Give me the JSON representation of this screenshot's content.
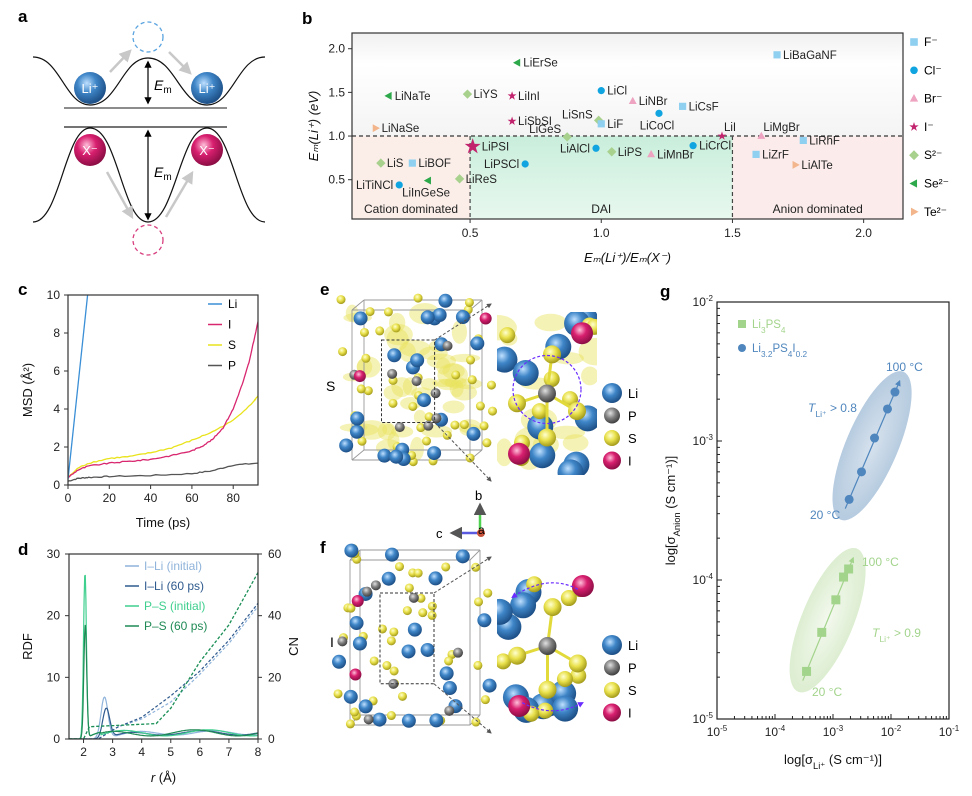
{
  "panel_labels": {
    "a": "a",
    "b": "b",
    "c": "c",
    "d": "d",
    "e": "e",
    "f": "f",
    "g": "g"
  },
  "colors": {
    "li": "#3f86c8",
    "anion": "#d81f6f",
    "p": "#7a7a7a",
    "s": "#e6e04a",
    "cation_region": "#fbeee9",
    "dai_region": "#d4f1e2",
    "anion_region": "#fbeceb"
  },
  "diagram_a": {
    "cation_label": "Li⁺",
    "anion_label": "X⁻",
    "barrier_symbol": "E",
    "barrier_subscript": "m"
  },
  "structures": {
    "e": {
      "side_label": "S"
    },
    "f": {
      "side_label": "I"
    },
    "legend": [
      {
        "label": "Li",
        "color": "#3f86c8"
      },
      {
        "label": "P",
        "color": "#808080"
      },
      {
        "label": "S",
        "color": "#e8e04a"
      },
      {
        "label": "I",
        "color": "#d81f6f"
      }
    ],
    "axes": {
      "b": "b",
      "c": "c",
      "a": "a"
    }
  },
  "chart_data": [
    {
      "id": "b",
      "type": "scatter",
      "xlabel": "Eₘ(Li⁺)/Eₘ(X⁻)",
      "ylabel": "Eₘ(Li⁺) (eV)",
      "xlim": [
        0.05,
        2.15
      ],
      "ylim": [
        0.05,
        2.18
      ],
      "xticks": [
        "0.5",
        "1.0",
        "1.5",
        "2.0"
      ],
      "yticks": [
        "0.5",
        "1.0",
        "1.5",
        "2.0"
      ],
      "threshold_y": 1.0,
      "regions": [
        {
          "label": "Cation dominated",
          "x": [
            0.05,
            0.5
          ]
        },
        {
          "label": "DAI",
          "x": [
            0.5,
            1.5
          ]
        },
        {
          "label": "Anion dominated",
          "x": [
            1.5,
            2.15
          ]
        }
      ],
      "legend_position": "right",
      "legend": [
        {
          "key": "F",
          "label": "F⁻",
          "marker": "square",
          "color": "#8fd0f0"
        },
        {
          "key": "Cl",
          "label": "Cl⁻",
          "marker": "circle",
          "color": "#10a4e0"
        },
        {
          "key": "Br",
          "label": "Br⁻",
          "marker": "triangle-up",
          "color": "#eea3c0"
        },
        {
          "key": "I",
          "label": "I⁻",
          "marker": "star",
          "color": "#c2236d"
        },
        {
          "key": "S",
          "label": "S²⁻",
          "marker": "diamond",
          "color": "#a9d18e"
        },
        {
          "key": "Se",
          "label": "Se²⁻",
          "marker": "triangle-left",
          "color": "#2da84b"
        },
        {
          "key": "Te",
          "label": "Te²⁻",
          "marker": "triangle-right",
          "color": "#f3b58b"
        }
      ],
      "points": [
        {
          "name": "LiErSe",
          "anion": "Se",
          "x": 0.68,
          "y": 1.84
        },
        {
          "name": "LiNaTe",
          "anion": "Se",
          "x": 0.19,
          "y": 1.46
        },
        {
          "name": "LiYS",
          "anion": "S",
          "x": 0.49,
          "y": 1.48
        },
        {
          "name": "LiInI",
          "anion": "I",
          "x": 0.66,
          "y": 1.46
        },
        {
          "name": "LiCl",
          "anion": "Cl",
          "x": 1.0,
          "y": 1.52
        },
        {
          "name": "LiNBr",
          "anion": "Br",
          "x": 1.12,
          "y": 1.4
        },
        {
          "name": "LiCsF",
          "anion": "F",
          "x": 1.31,
          "y": 1.34
        },
        {
          "name": "LiSbSI",
          "anion": "I",
          "x": 0.66,
          "y": 1.17
        },
        {
          "name": "LiSnS",
          "anion": "S",
          "x": 0.99,
          "y": 1.18
        },
        {
          "name": "LiF",
          "anion": "F",
          "x": 1.0,
          "y": 1.14
        },
        {
          "name": "LiCoCl",
          "anion": "Cl",
          "x": 1.22,
          "y": 1.26
        },
        {
          "name": "LiNaSe",
          "anion": "Te",
          "x": 0.14,
          "y": 1.09
        },
        {
          "name": "LiGeS",
          "anion": "S",
          "x": 0.87,
          "y": 0.99
        },
        {
          "name": "LiI",
          "anion": "I",
          "x": 1.46,
          "y": 1.0
        },
        {
          "name": "LiPSI",
          "anion": "I",
          "x": 0.51,
          "y": 0.88,
          "highlight": true
        },
        {
          "name": "LiAlCl",
          "anion": "Cl",
          "x": 0.98,
          "y": 0.86
        },
        {
          "name": "LiPS",
          "anion": "S",
          "x": 1.04,
          "y": 0.82
        },
        {
          "name": "LiMnBr",
          "anion": "Br",
          "x": 1.19,
          "y": 0.79
        },
        {
          "name": "LiCrCl",
          "anion": "Cl",
          "x": 1.35,
          "y": 0.89
        },
        {
          "name": "LiS",
          "anion": "S",
          "x": 0.16,
          "y": 0.69
        },
        {
          "name": "LiBOF",
          "anion": "F",
          "x": 0.28,
          "y": 0.69
        },
        {
          "name": "LiPSCl",
          "anion": "Cl",
          "x": 0.71,
          "y": 0.68
        },
        {
          "name": "LiTiNCl",
          "anion": "Cl",
          "x": 0.23,
          "y": 0.44
        },
        {
          "name": "LiInGeSe",
          "anion": "Se",
          "x": 0.34,
          "y": 0.49
        },
        {
          "name": "LiReS",
          "anion": "S",
          "x": 0.46,
          "y": 0.51
        },
        {
          "name": "LiBaGaNF",
          "anion": "F",
          "x": 1.67,
          "y": 1.93
        },
        {
          "name": "LiMgBr",
          "anion": "Br",
          "x": 1.61,
          "y": 1.0
        },
        {
          "name": "LiRhF",
          "anion": "F",
          "x": 1.77,
          "y": 0.95
        },
        {
          "name": "LiZrF",
          "anion": "F",
          "x": 1.59,
          "y": 0.79
        },
        {
          "name": "LiAlTe",
          "anion": "Te",
          "x": 1.74,
          "y": 0.67
        }
      ]
    },
    {
      "id": "c",
      "type": "line",
      "xlabel": "Time (ps)",
      "ylabel": "MSD (Å²)",
      "xlim": [
        0,
        92
      ],
      "ylim": [
        0,
        10
      ],
      "xticks": [
        0,
        20,
        40,
        60,
        80
      ],
      "yticks": [
        0,
        2,
        4,
        6,
        8,
        10
      ],
      "legend_position": "top-right",
      "series": [
        {
          "name": "Li",
          "color": "#3a8fd6",
          "x": [
            0,
            9.5
          ],
          "y": [
            0.3,
            10
          ]
        },
        {
          "name": "I",
          "color": "#d8276f",
          "x": [
            0,
            5,
            10,
            20,
            30,
            40,
            50,
            60,
            65,
            70,
            75,
            80,
            85,
            88,
            92
          ],
          "y": [
            0.4,
            0.8,
            1.0,
            1.15,
            1.25,
            1.35,
            1.55,
            1.8,
            2.05,
            2.4,
            3.0,
            4.0,
            5.5,
            6.6,
            8.6
          ]
        },
        {
          "name": "S",
          "color": "#e9e31c",
          "x": [
            0,
            5,
            10,
            20,
            30,
            40,
            50,
            60,
            70,
            80,
            90,
            92
          ],
          "y": [
            0.4,
            0.9,
            1.15,
            1.4,
            1.5,
            1.7,
            1.95,
            2.35,
            2.8,
            3.4,
            4.4,
            4.7
          ]
        },
        {
          "name": "P",
          "color": "#555555",
          "x": [
            0,
            5,
            10,
            20,
            40,
            60,
            70,
            80,
            92
          ],
          "y": [
            0.2,
            0.35,
            0.4,
            0.45,
            0.5,
            0.6,
            0.75,
            1.05,
            1.15
          ]
        }
      ]
    },
    {
      "id": "d",
      "type": "line",
      "xlabel": "r (Å)",
      "ylabel": "RDF",
      "y2label": "CN",
      "xlim": [
        1.5,
        8
      ],
      "ylim": [
        0,
        30
      ],
      "y2lim": [
        0,
        60
      ],
      "xticks": [
        2,
        3,
        4,
        5,
        6,
        7,
        8
      ],
      "yticks": [
        0,
        10,
        20,
        30
      ],
      "y2ticks": [
        0,
        20,
        40,
        60
      ],
      "legend_position": "top",
      "series": [
        {
          "name": "I–Li (initial)",
          "color": "#8fb3da",
          "rdf_peak": [
            2.72,
            6.8
          ],
          "cn_x": [
            1.5,
            2.5,
            3.2,
            4,
            5,
            6,
            7,
            8
          ],
          "cn_y": [
            0,
            0,
            4,
            6.5,
            12,
            21,
            31,
            43
          ]
        },
        {
          "name": "I–Li (60 ps)",
          "color": "#2f5a8e",
          "rdf_peak": [
            2.78,
            5.0
          ],
          "cn_x": [
            1.5,
            2.5,
            3.2,
            4,
            5,
            6,
            7,
            8
          ],
          "cn_y": [
            0,
            0,
            4,
            7,
            14,
            22,
            32,
            44
          ]
        },
        {
          "name": "P–S (initial)",
          "color": "#3fcf8e",
          "rdf_peak": [
            2.05,
            27
          ],
          "cn_x": [
            1.5,
            2.0,
            2.2,
            4.5,
            5,
            6,
            7,
            8
          ],
          "cn_y": [
            0,
            0,
            4,
            5,
            10,
            25,
            37,
            54
          ]
        },
        {
          "name": "P–S (60 ps)",
          "color": "#1f8a55",
          "rdf_peak": [
            2.06,
            18.5
          ],
          "cn_x": [
            1.5,
            2.0,
            2.2,
            4.5,
            5,
            6,
            7,
            8
          ],
          "cn_y": [
            0,
            0,
            4,
            5,
            10,
            25,
            37,
            54
          ]
        }
      ]
    },
    {
      "id": "g",
      "type": "scatter",
      "xscale": "log",
      "yscale": "log",
      "xlabel": [
        {
          "t": "log[σ"
        },
        {
          "t": "Li⁺",
          "sub": true
        },
        {
          "t": " (S cm⁻¹)]"
        }
      ],
      "ylabel": [
        {
          "t": "log[σ"
        },
        {
          "t": "Anion",
          "sub": true
        },
        {
          "t": " (S cm⁻¹)]"
        }
      ],
      "xlim": [
        1e-05,
        0.1
      ],
      "ylim": [
        1e-05,
        0.01
      ],
      "xticks": [
        {
          "b": "10",
          "e": "-5"
        },
        {
          "b": "10",
          "e": "-4"
        },
        {
          "b": "10",
          "e": "-3"
        },
        {
          "b": "10",
          "e": "-2"
        },
        {
          "b": "10",
          "e": "-1"
        }
      ],
      "yticks": [
        {
          "b": "10",
          "e": "-5"
        },
        {
          "b": "10",
          "e": "-4"
        },
        {
          "b": "10",
          "e": "-3"
        },
        {
          "b": "10",
          "e": "-2"
        }
      ],
      "legend_position": "top-left",
      "series": [
        {
          "name": [
            {
              "t": "Li"
            },
            {
              "t": "3",
              "sub": true
            },
            {
              "t": "PS"
            },
            {
              "t": "4",
              "sub": true
            }
          ],
          "marker": "square",
          "color": "#a3d48c",
          "x": [
            0.00035,
            0.00064,
            0.00112,
            0.00152,
            0.00186
          ],
          "y": [
            2.2e-05,
            4.2e-05,
            7.2e-05,
            0.000105,
            0.00012
          ],
          "annotations": {
            "low": "20 °C",
            "high": "100 °C",
            "transference": [
              {
                "t": "T",
                "i": true
              },
              {
                "t": "Li⁺",
                "sub": true
              },
              {
                "t": " > 0.9"
              }
            ]
          }
        },
        {
          "name": [
            {
              "t": "Li"
            },
            {
              "t": "3.2",
              "sub": true
            },
            {
              "t": "PS"
            },
            {
              "t": "4",
              "sub": true
            },
            {
              "t": "I"
            },
            {
              "t": "0.2",
              "sub": true
            }
          ],
          "marker": "circle",
          "color": "#4f86bd",
          "x": [
            0.0019,
            0.0031,
            0.0052,
            0.0087,
            0.0117
          ],
          "y": [
            0.00038,
            0.0006,
            0.00105,
            0.0017,
            0.00225
          ],
          "annotations": {
            "low": "20 °C",
            "high": "100 °C",
            "transference": [
              {
                "t": "T",
                "i": true
              },
              {
                "t": "Li⁺",
                "sub": true
              },
              {
                "t": " > 0.8"
              }
            ]
          }
        }
      ]
    }
  ]
}
